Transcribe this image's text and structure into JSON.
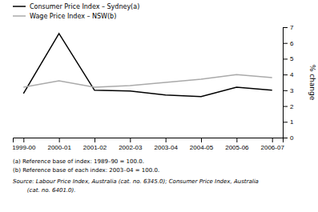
{
  "chart_data": {
    "type": "line",
    "categories": [
      "1999-00",
      "2000-01",
      "2001-02",
      "2002-03",
      "2003-04",
      "2004-05",
      "2005-06",
      "2006-07"
    ],
    "series": [
      {
        "name": "Consumer Price Index – Sydney(a)",
        "color": "#000000",
        "values": [
          2.8,
          6.6,
          3.0,
          2.95,
          2.7,
          2.6,
          3.2,
          3.0
        ]
      },
      {
        "name": "Wage Price Index – NSW(b)",
        "color": "#aaaaaa",
        "values": [
          3.2,
          3.6,
          3.2,
          3.3,
          3.5,
          3.7,
          4.0,
          3.8
        ]
      }
    ],
    "ylim": [
      0,
      7
    ],
    "yticks": [
      0,
      1,
      2,
      3,
      4,
      5,
      6,
      7
    ],
    "y_label": "% change",
    "grid": false,
    "legend": "upper left",
    "annotations": [
      "(a) Reference base of index: 1989–90 = 100.0.",
      "(b) Reference base of each index: 2003–04 = 100.0.",
      "Source: Labour Price Index, Australia (cat. no. 6345.0); Consumer Price Index, Australia",
      "        (cat. no. 6401.0)."
    ]
  }
}
